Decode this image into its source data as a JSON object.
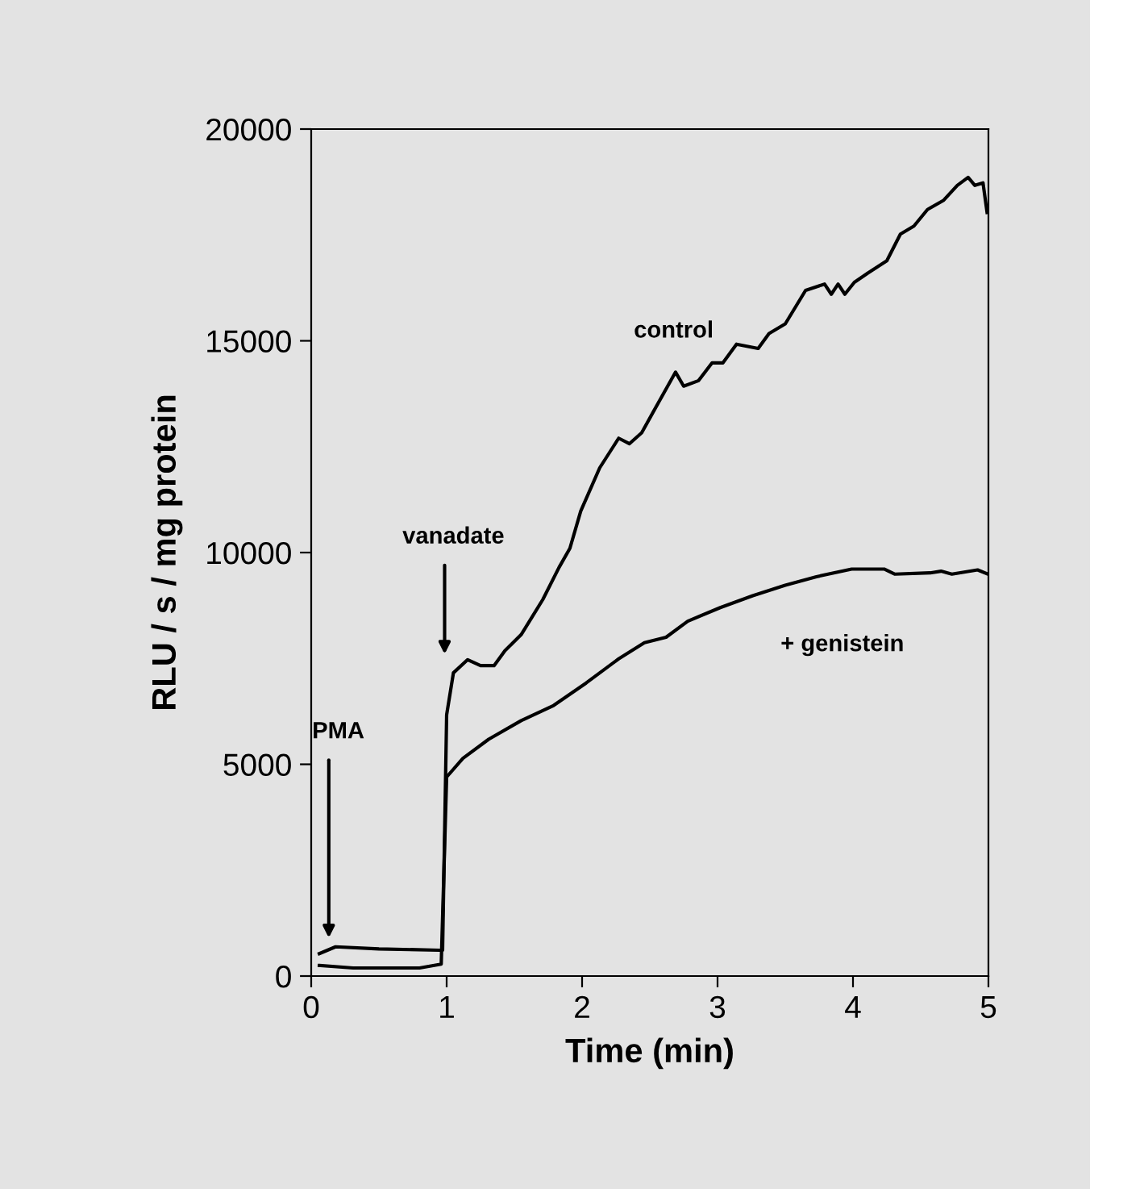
{
  "chart_data": {
    "type": "line",
    "xlabel": "Time (min)",
    "ylabel": "RLU / s / mg protein",
    "xlim": [
      0,
      5
    ],
    "ylim": [
      0,
      20000
    ],
    "xticks": [
      0,
      1,
      2,
      3,
      4,
      5
    ],
    "yticks": [
      0,
      5000,
      10000,
      15000,
      20000
    ],
    "grid": false,
    "legend": false,
    "marker": "none",
    "line_style": "solid",
    "series": [
      {
        "name": "control",
        "color": "#000000",
        "x": [
          0.06,
          0.18,
          0.5,
          0.95,
          0.97,
          1.0,
          1.05,
          1.155,
          1.25,
          1.35,
          1.43,
          1.55,
          1.71,
          1.83,
          1.91,
          1.99,
          2.13,
          2.27,
          2.35,
          2.44,
          2.56,
          2.69,
          2.75,
          2.86,
          2.96,
          3.04,
          3.14,
          3.3,
          3.38,
          3.5,
          3.65,
          3.79,
          3.84,
          3.89,
          3.94,
          4.01,
          4.11,
          4.25,
          4.35,
          4.45,
          4.55,
          4.67,
          4.77,
          4.85,
          4.9,
          4.96,
          4.99
        ],
        "values": [
          530,
          690,
          640,
          610,
          610,
          6170,
          7160,
          7470,
          7330,
          7330,
          7680,
          8060,
          8890,
          9650,
          10100,
          10980,
          12000,
          12700,
          12570,
          12830,
          13520,
          14260,
          13930,
          14060,
          14480,
          14480,
          14920,
          14820,
          15170,
          15400,
          16190,
          16340,
          16100,
          16340,
          16100,
          16380,
          16600,
          16890,
          17520,
          17710,
          18100,
          18320,
          18670,
          18860,
          18670,
          18730,
          18030
        ]
      },
      {
        "name": "+ genistein",
        "color": "#000000",
        "x": [
          0.06,
          0.31,
          0.8,
          0.96,
          1.0,
          1.12,
          1.31,
          1.55,
          1.79,
          2.03,
          2.27,
          2.46,
          2.62,
          2.78,
          3.02,
          3.26,
          3.5,
          3.73,
          3.99,
          4.23,
          4.31,
          4.57,
          4.65,
          4.73,
          4.92,
          4.99
        ],
        "values": [
          250,
          190,
          190,
          280,
          4700,
          5140,
          5590,
          6030,
          6390,
          6920,
          7490,
          7870,
          8000,
          8380,
          8700,
          8980,
          9230,
          9430,
          9610,
          9610,
          9490,
          9520,
          9560,
          9490,
          9590,
          9500
        ]
      }
    ],
    "annotations": [
      "PMA",
      "vanadate"
    ]
  }
}
